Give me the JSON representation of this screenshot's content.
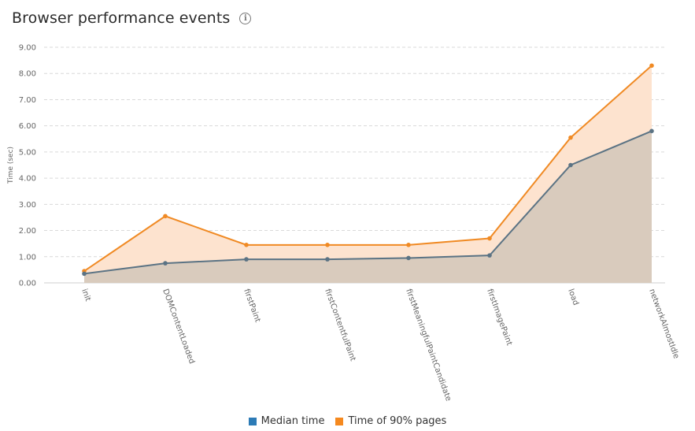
{
  "header": {
    "title": "Browser performance events",
    "info_icon": "info-icon"
  },
  "legend": {
    "items": [
      {
        "label": "Median time",
        "color": "#2c7bb6"
      },
      {
        "label": "Time of 90% pages",
        "color": "#f5891f"
      }
    ]
  },
  "chart_data": {
    "type": "area",
    "title": "Browser performance events",
    "xlabel": "",
    "ylabel": "Time (sec)",
    "ylim": [
      0,
      9
    ],
    "yticks": [
      "0.00",
      "1.00",
      "2.00",
      "3.00",
      "4.00",
      "5.00",
      "6.00",
      "7.00",
      "8.00",
      "9.00"
    ],
    "categories": [
      "init",
      "DOMContentLoaded",
      "firstPaint",
      "firstContentfulPaint",
      "firstMeaningfulPaintCandidate",
      "firstImagePaint",
      "load",
      "networkAlmostIdle"
    ],
    "series": [
      {
        "name": "Median time",
        "values": [
          0.35,
          0.75,
          0.9,
          0.9,
          0.95,
          1.05,
          4.5,
          5.8
        ],
        "line_color": "#5b7384",
        "fill_color": "#d9cbbd"
      },
      {
        "name": "Time of 90% pages",
        "values": [
          0.45,
          2.55,
          1.45,
          1.45,
          1.45,
          1.7,
          5.55,
          8.3
        ],
        "line_color": "#f08a24",
        "fill_color": "#fde3cf"
      }
    ],
    "grid": true,
    "legend_position": "bottom"
  }
}
